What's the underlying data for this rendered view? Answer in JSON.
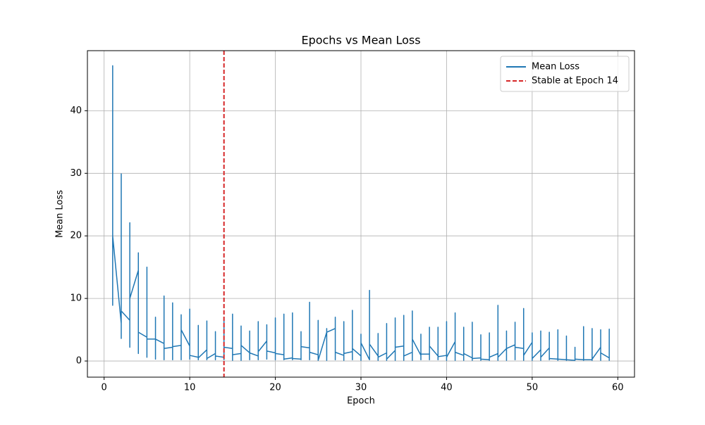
{
  "chart_data": {
    "type": "line",
    "title": "Epochs vs Mean Loss",
    "x_label": "Epoch",
    "y_label": "Mean Loss",
    "x": [
      1,
      1,
      1,
      1,
      2,
      2,
      2,
      2,
      3,
      3,
      3,
      3,
      4,
      4,
      4,
      4,
      5,
      5,
      5,
      5,
      6,
      6,
      6,
      6,
      7,
      7,
      7,
      7,
      8,
      8,
      8,
      8,
      9,
      9,
      9,
      9,
      10,
      10,
      10,
      10,
      11,
      11,
      11,
      11,
      12,
      12,
      12,
      12,
      13,
      13,
      13,
      13,
      14,
      14,
      14,
      14,
      15,
      15,
      15,
      15,
      16,
      16,
      16,
      16,
      17,
      17,
      17,
      17,
      18,
      18,
      18,
      18,
      19,
      19,
      19,
      19,
      20,
      20,
      20,
      20,
      21,
      21,
      21,
      21,
      22,
      22,
      22,
      22,
      23,
      23,
      23,
      23,
      24,
      24,
      24,
      24,
      25,
      25,
      25,
      25,
      26,
      26,
      26,
      26,
      27,
      27,
      27,
      27,
      28,
      28,
      28,
      28,
      29,
      29,
      29,
      29,
      30,
      30,
      30,
      30,
      31,
      31,
      31,
      31,
      32,
      32,
      32,
      32,
      33,
      33,
      33,
      33,
      34,
      34,
      34,
      34,
      35,
      35,
      35,
      35,
      36,
      36,
      36,
      36,
      37,
      37,
      37,
      37,
      38,
      38,
      38,
      38,
      39,
      39,
      39,
      39,
      40,
      40,
      40,
      40,
      41,
      41,
      41,
      41,
      42,
      42,
      42,
      42,
      43,
      43,
      43,
      43,
      44,
      44,
      44,
      44,
      45,
      45,
      45,
      45,
      46,
      46,
      46,
      46,
      47,
      47,
      47,
      47,
      48,
      48,
      48,
      48,
      49,
      49,
      49,
      49,
      50,
      50,
      50,
      50,
      51,
      51,
      51,
      51,
      52,
      52,
      52,
      52,
      53,
      53,
      53,
      53,
      54,
      54,
      54,
      54,
      55,
      55,
      55,
      55,
      56,
      56,
      56,
      56,
      57,
      57,
      57,
      57,
      58,
      58,
      58,
      58,
      59,
      59,
      59,
      59
    ],
    "series": [
      {
        "name": "Mean Loss",
        "color": "#1f77b4",
        "values": [
          36,
          47.2,
          8.9,
          20,
          6,
          29.9,
          3.6,
          8,
          6.5,
          22.1,
          2.2,
          10,
          14.5,
          17.3,
          1.2,
          4.6,
          3.8,
          15,
          0.6,
          3.5,
          3.5,
          7,
          0.3,
          3.5,
          2.8,
          10.4,
          0.2,
          2,
          2.2,
          9.3,
          0.2,
          2.3,
          2.5,
          7.4,
          0.2,
          5,
          2.4,
          8.3,
          0.3,
          0.9,
          0.6,
          5.7,
          0.2,
          0.5,
          1.8,
          6.4,
          0.2,
          0.4,
          1.2,
          4.7,
          0.2,
          0.8,
          0.6,
          7,
          0.2,
          2.2,
          2,
          7.5,
          0.1,
          1,
          1.2,
          5.6,
          0.1,
          2.5,
          1.3,
          4.8,
          0.2,
          1.3,
          0.8,
          6.3,
          0.2,
          1.5,
          3.2,
          5.8,
          0.3,
          1.6,
          1.3,
          6.9,
          0.2,
          1.2,
          1,
          7.5,
          0.2,
          0.3,
          0.5,
          7.7,
          0.2,
          0.4,
          0.3,
          4.7,
          0.2,
          2.3,
          2.1,
          9.4,
          0.2,
          1.4,
          1,
          6.5,
          0.1,
          0.1,
          4.6,
          5.2,
          0.1,
          4.6,
          5.2,
          7,
          0.2,
          1.4,
          0.9,
          6.3,
          0.1,
          1.2,
          1.5,
          8.1,
          0.2,
          2,
          0.8,
          4.3,
          0.1,
          2.9,
          0.2,
          11.3,
          0.2,
          2.7,
          0.8,
          4.4,
          0.1,
          0.6,
          1.3,
          6,
          0.1,
          0.3,
          1.7,
          6.9,
          0.1,
          2.2,
          2.4,
          7.3,
          0.1,
          0.8,
          1.4,
          8,
          0.1,
          3.5,
          0.9,
          4.3,
          0.2,
          1.1,
          1.1,
          5.4,
          0.2,
          2.4,
          0.8,
          5.4,
          0.2,
          0.7,
          0.9,
          6.3,
          0.1,
          0.6,
          3.1,
          7.7,
          0.1,
          1.4,
          0.9,
          5.4,
          0.1,
          1.2,
          0.5,
          6.2,
          0.1,
          0.4,
          0.5,
          4.2,
          0.1,
          0.3,
          0.2,
          4.5,
          0.1,
          0.6,
          1.2,
          8.9,
          0.1,
          0.6,
          2,
          4.8,
          0.1,
          2,
          2.6,
          6.2,
          0.2,
          2.2,
          2,
          8.4,
          0.1,
          0.9,
          3,
          4.5,
          0.1,
          0.4,
          1.8,
          4.8,
          0.1,
          0.6,
          2.1,
          4.6,
          0.2,
          0.4,
          0.3,
          5,
          0.1,
          0.3,
          0.2,
          4,
          0.1,
          0.2,
          0.1,
          2.2,
          0.1,
          0.3,
          0.2,
          5.5,
          0.1,
          0.2,
          0.2,
          5.2,
          0.1,
          0.3,
          2.2,
          5,
          0.1,
          1.3,
          0.5,
          5.1,
          0.1,
          0.4
        ]
      }
    ],
    "vline": {
      "x": 14,
      "name": "Stable at Epoch 14",
      "color": "#d62728",
      "style": "dashed"
    },
    "xlim": [
      -1.95,
      61.95
    ],
    "ylim": [
      -2.58,
      49.6
    ],
    "xticks": [
      0,
      10,
      20,
      30,
      40,
      50,
      60
    ],
    "yticks": [
      0,
      10,
      20,
      30,
      40
    ],
    "grid": true,
    "legend": "upper right"
  }
}
